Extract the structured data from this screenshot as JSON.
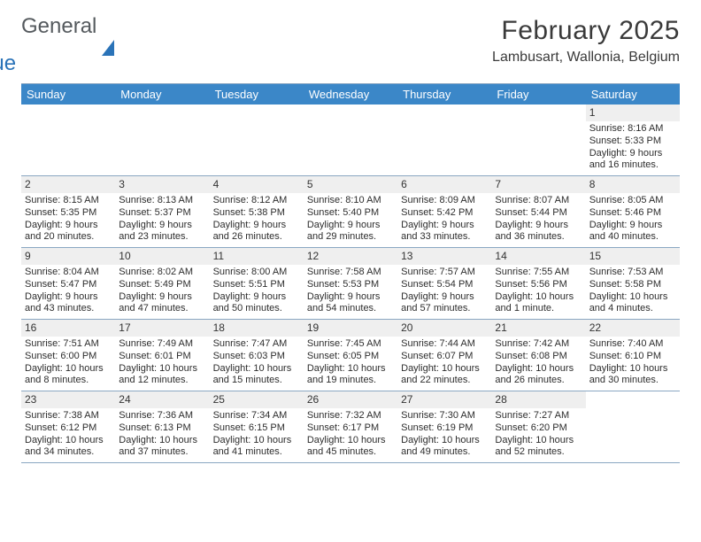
{
  "logo": {
    "word1": "General",
    "word2": "Blue"
  },
  "title": "February 2025",
  "location": "Lambusart, Wallonia, Belgium",
  "colors": {
    "header_bg": "#3b87c8",
    "header_text": "#ffffff",
    "border": "#8aa7c2",
    "daynum_bg": "#efefef",
    "text": "#2d2d2d",
    "logo_gray": "#555a5e",
    "logo_blue": "#2a73b8"
  },
  "dow": [
    "Sunday",
    "Monday",
    "Tuesday",
    "Wednesday",
    "Thursday",
    "Friday",
    "Saturday"
  ],
  "weeks": [
    [
      {
        "n": "",
        "lines": []
      },
      {
        "n": "",
        "lines": []
      },
      {
        "n": "",
        "lines": []
      },
      {
        "n": "",
        "lines": []
      },
      {
        "n": "",
        "lines": []
      },
      {
        "n": "",
        "lines": []
      },
      {
        "n": "1",
        "lines": [
          "Sunrise: 8:16 AM",
          "Sunset: 5:33 PM",
          "Daylight: 9 hours and 16 minutes."
        ]
      }
    ],
    [
      {
        "n": "2",
        "lines": [
          "Sunrise: 8:15 AM",
          "Sunset: 5:35 PM",
          "Daylight: 9 hours and 20 minutes."
        ]
      },
      {
        "n": "3",
        "lines": [
          "Sunrise: 8:13 AM",
          "Sunset: 5:37 PM",
          "Daylight: 9 hours and 23 minutes."
        ]
      },
      {
        "n": "4",
        "lines": [
          "Sunrise: 8:12 AM",
          "Sunset: 5:38 PM",
          "Daylight: 9 hours and 26 minutes."
        ]
      },
      {
        "n": "5",
        "lines": [
          "Sunrise: 8:10 AM",
          "Sunset: 5:40 PM",
          "Daylight: 9 hours and 29 minutes."
        ]
      },
      {
        "n": "6",
        "lines": [
          "Sunrise: 8:09 AM",
          "Sunset: 5:42 PM",
          "Daylight: 9 hours and 33 minutes."
        ]
      },
      {
        "n": "7",
        "lines": [
          "Sunrise: 8:07 AM",
          "Sunset: 5:44 PM",
          "Daylight: 9 hours and 36 minutes."
        ]
      },
      {
        "n": "8",
        "lines": [
          "Sunrise: 8:05 AM",
          "Sunset: 5:46 PM",
          "Daylight: 9 hours and 40 minutes."
        ]
      }
    ],
    [
      {
        "n": "9",
        "lines": [
          "Sunrise: 8:04 AM",
          "Sunset: 5:47 PM",
          "Daylight: 9 hours and 43 minutes."
        ]
      },
      {
        "n": "10",
        "lines": [
          "Sunrise: 8:02 AM",
          "Sunset: 5:49 PM",
          "Daylight: 9 hours and 47 minutes."
        ]
      },
      {
        "n": "11",
        "lines": [
          "Sunrise: 8:00 AM",
          "Sunset: 5:51 PM",
          "Daylight: 9 hours and 50 minutes."
        ]
      },
      {
        "n": "12",
        "lines": [
          "Sunrise: 7:58 AM",
          "Sunset: 5:53 PM",
          "Daylight: 9 hours and 54 minutes."
        ]
      },
      {
        "n": "13",
        "lines": [
          "Sunrise: 7:57 AM",
          "Sunset: 5:54 PM",
          "Daylight: 9 hours and 57 minutes."
        ]
      },
      {
        "n": "14",
        "lines": [
          "Sunrise: 7:55 AM",
          "Sunset: 5:56 PM",
          "Daylight: 10 hours and 1 minute."
        ]
      },
      {
        "n": "15",
        "lines": [
          "Sunrise: 7:53 AM",
          "Sunset: 5:58 PM",
          "Daylight: 10 hours and 4 minutes."
        ]
      }
    ],
    [
      {
        "n": "16",
        "lines": [
          "Sunrise: 7:51 AM",
          "Sunset: 6:00 PM",
          "Daylight: 10 hours and 8 minutes."
        ]
      },
      {
        "n": "17",
        "lines": [
          "Sunrise: 7:49 AM",
          "Sunset: 6:01 PM",
          "Daylight: 10 hours and 12 minutes."
        ]
      },
      {
        "n": "18",
        "lines": [
          "Sunrise: 7:47 AM",
          "Sunset: 6:03 PM",
          "Daylight: 10 hours and 15 minutes."
        ]
      },
      {
        "n": "19",
        "lines": [
          "Sunrise: 7:45 AM",
          "Sunset: 6:05 PM",
          "Daylight: 10 hours and 19 minutes."
        ]
      },
      {
        "n": "20",
        "lines": [
          "Sunrise: 7:44 AM",
          "Sunset: 6:07 PM",
          "Daylight: 10 hours and 22 minutes."
        ]
      },
      {
        "n": "21",
        "lines": [
          "Sunrise: 7:42 AM",
          "Sunset: 6:08 PM",
          "Daylight: 10 hours and 26 minutes."
        ]
      },
      {
        "n": "22",
        "lines": [
          "Sunrise: 7:40 AM",
          "Sunset: 6:10 PM",
          "Daylight: 10 hours and 30 minutes."
        ]
      }
    ],
    [
      {
        "n": "23",
        "lines": [
          "Sunrise: 7:38 AM",
          "Sunset: 6:12 PM",
          "Daylight: 10 hours and 34 minutes."
        ]
      },
      {
        "n": "24",
        "lines": [
          "Sunrise: 7:36 AM",
          "Sunset: 6:13 PM",
          "Daylight: 10 hours and 37 minutes."
        ]
      },
      {
        "n": "25",
        "lines": [
          "Sunrise: 7:34 AM",
          "Sunset: 6:15 PM",
          "Daylight: 10 hours and 41 minutes."
        ]
      },
      {
        "n": "26",
        "lines": [
          "Sunrise: 7:32 AM",
          "Sunset: 6:17 PM",
          "Daylight: 10 hours and 45 minutes."
        ]
      },
      {
        "n": "27",
        "lines": [
          "Sunrise: 7:30 AM",
          "Sunset: 6:19 PM",
          "Daylight: 10 hours and 49 minutes."
        ]
      },
      {
        "n": "28",
        "lines": [
          "Sunrise: 7:27 AM",
          "Sunset: 6:20 PM",
          "Daylight: 10 hours and 52 minutes."
        ]
      },
      {
        "n": "",
        "lines": []
      }
    ]
  ]
}
